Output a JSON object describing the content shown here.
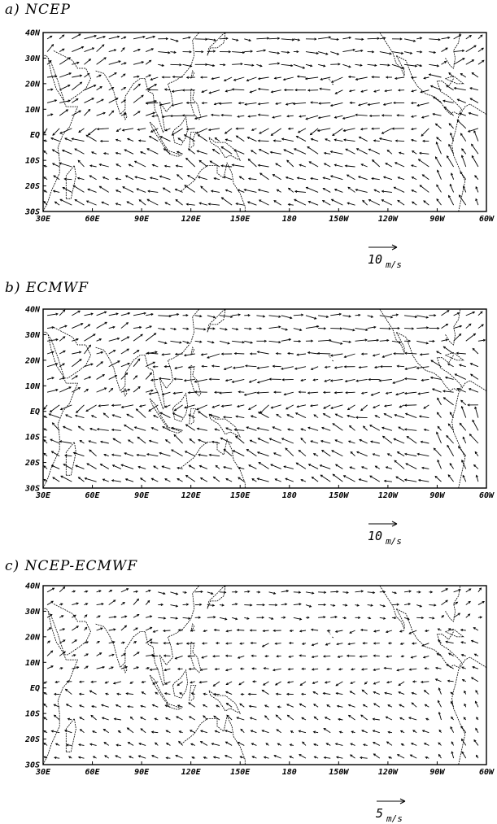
{
  "panels": [
    {
      "id": "a",
      "title": "a) NCEP",
      "ref_value": "10",
      "ref_unit": "m/s"
    },
    {
      "id": "b",
      "title": "b) ECMWF",
      "ref_value": "10",
      "ref_unit": "m/s"
    },
    {
      "id": "c",
      "title": "c) NCEP-ECMWF",
      "ref_value": "5",
      "ref_unit": "m/s"
    }
  ],
  "axes": {
    "lat_labels": [
      "40N",
      "30N",
      "20N",
      "10N",
      "EQ",
      "10S",
      "20S",
      "30S"
    ],
    "lon_labels": [
      "30E",
      "60E",
      "90E",
      "120E",
      "150E",
      "180",
      "150W",
      "120W",
      "90W",
      "60W"
    ],
    "lat_range": [
      -30,
      40
    ],
    "lon_range": [
      30,
      300
    ]
  },
  "colors": {
    "ink": "#000000",
    "background": "#ffffff"
  }
}
